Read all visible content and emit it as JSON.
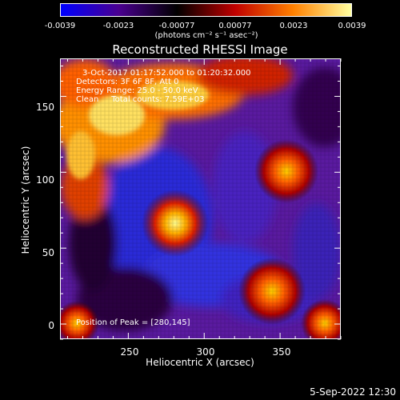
{
  "colorbar": {
    "ticks": [
      "-0.0039",
      "-0.0023",
      "-0.00077",
      "0.00077",
      "0.0023",
      "0.0039"
    ],
    "unit_text": "(photons cm⁻² s⁻¹ asec⁻²)",
    "colors": [
      "#0000ff",
      "#4a0090",
      "#000000",
      "#c00000",
      "#ff8000",
      "#ffffa0"
    ]
  },
  "title": "Reconstructed RHESSI Image",
  "info": {
    "line1": "3-Oct-2017 01:17:52.000 to 01:20:32.000",
    "line2": "Detectors: 3F 6F 8F, Att 0",
    "line3": "Energy Range: 25.0 - 50.0 keV",
    "line4": "Clean     Total counts: 7.59E+03",
    "peak": "Position of Peak = [280,145]"
  },
  "axes": {
    "xlabel": "Heliocentric X (arcsec)",
    "ylabel": "Heliocentric Y (arcsec)",
    "xticks": [
      250,
      300,
      350
    ],
    "yticks": [
      0,
      50,
      100,
      150
    ],
    "xlim": [
      205,
      390
    ],
    "ylim": [
      -10,
      175
    ]
  },
  "footer": "5-Sep-2022 12:30"
}
